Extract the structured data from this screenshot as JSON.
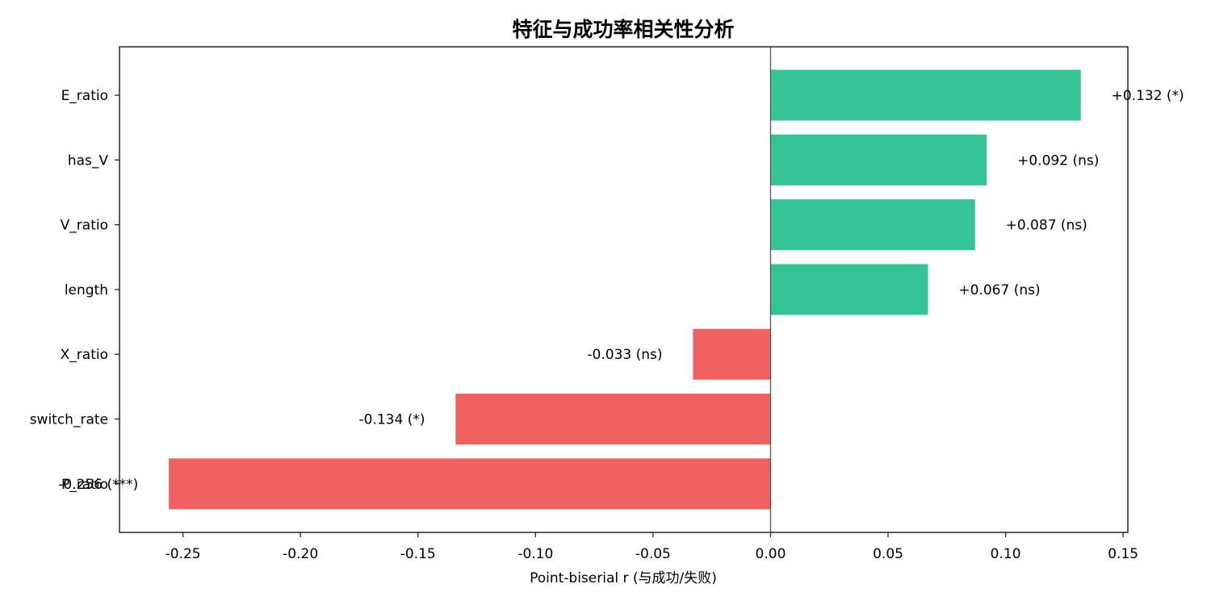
{
  "chart_data": {
    "type": "bar",
    "orientation": "horizontal",
    "title": "特征与成功率相关性分析",
    "xlabel": "Point-biserial r (与成功/失败)",
    "ylabel": "",
    "xlim": [
      -0.277,
      0.152
    ],
    "xticks": [
      -0.25,
      -0.2,
      -0.15,
      -0.1,
      -0.05,
      0.0,
      0.05,
      0.1,
      0.15
    ],
    "xtick_labels": [
      "-0.25",
      "-0.20",
      "-0.15",
      "-0.10",
      "-0.05",
      "0.00",
      "0.05",
      "0.10",
      "0.15"
    ],
    "grid": false,
    "legend": null,
    "zero_line": true,
    "categories": [
      "E_ratio",
      "has_V",
      "V_ratio",
      "length",
      "X_ratio",
      "switch_rate",
      "P_ratio"
    ],
    "values": [
      0.132,
      0.092,
      0.087,
      0.067,
      -0.033,
      -0.134,
      -0.256
    ],
    "significance": [
      "*",
      "ns",
      "ns",
      "ns",
      "ns",
      "*",
      "***"
    ],
    "bar_labels": [
      "+0.132 (*)",
      "+0.092 (ns)",
      "+0.087 (ns)",
      "+0.067 (ns)",
      "-0.033 (ns)",
      "-0.134 (*)",
      "-0.256 (***)"
    ],
    "colors": {
      "positive": "#35c495",
      "negative": "#f06262",
      "axis": "#262626",
      "zero_line": "#555555"
    }
  }
}
